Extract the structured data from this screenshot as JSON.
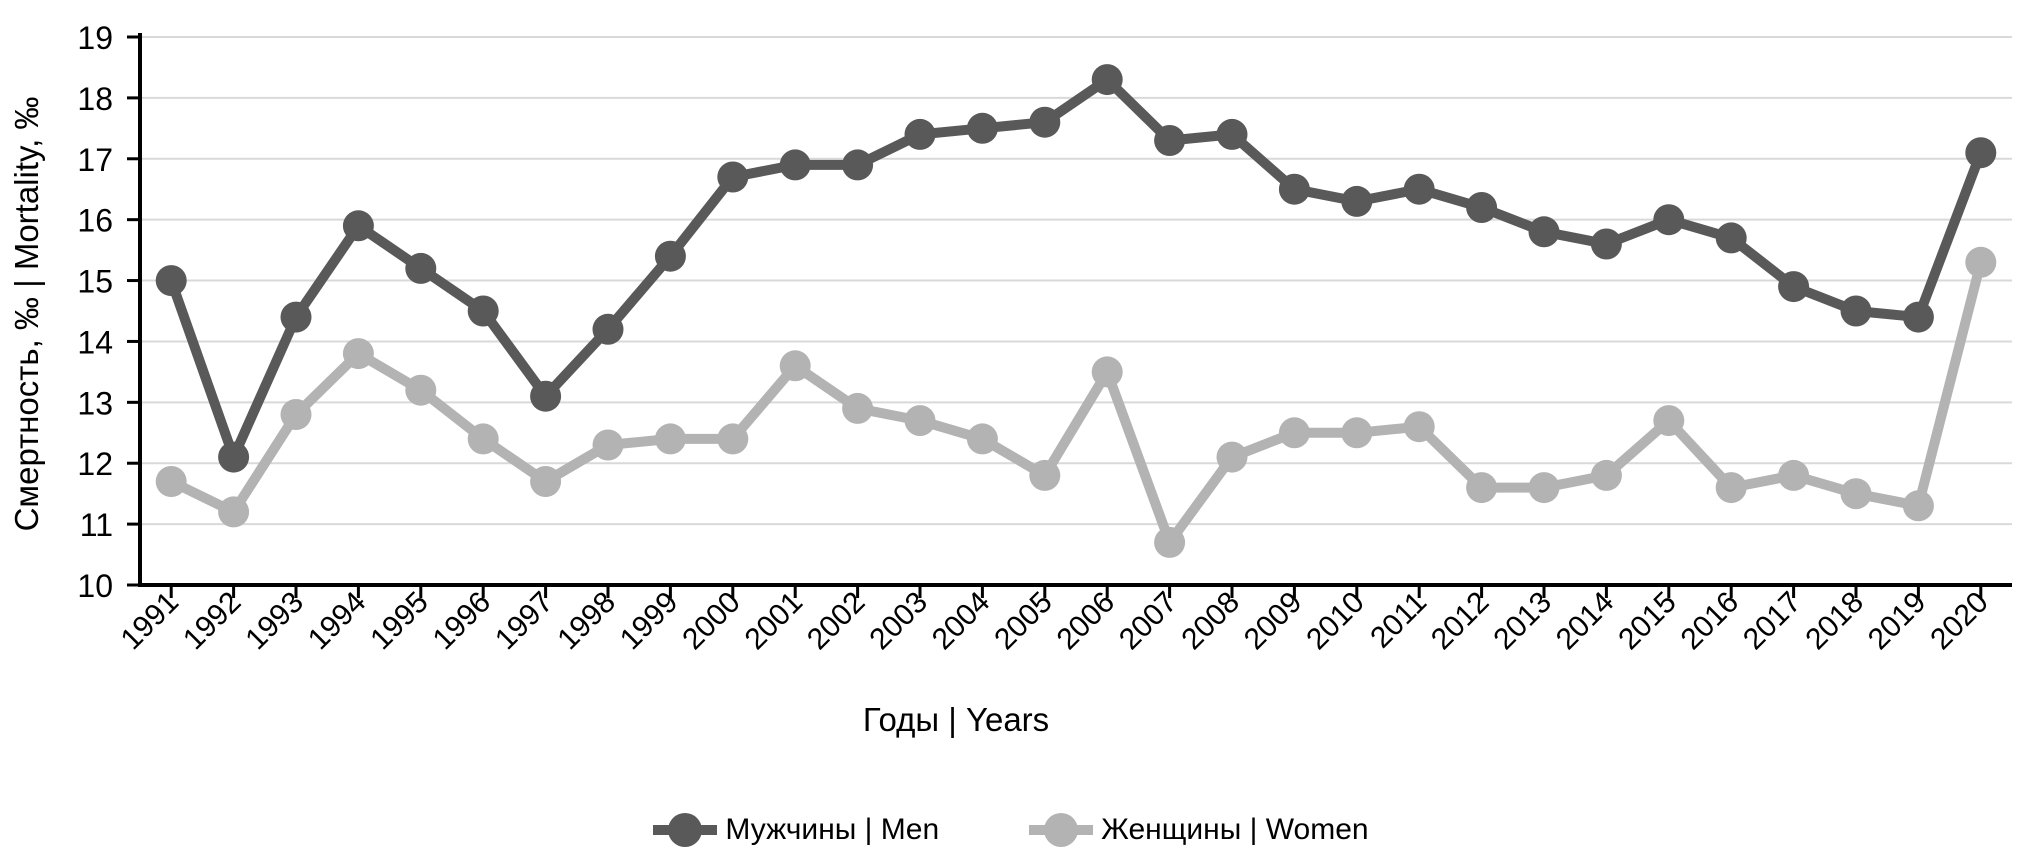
{
  "chart_data": {
    "type": "line",
    "title": "",
    "xlabel": "Годы | Years",
    "ylabel": "Смертность, ‰ | Mortality, ‰",
    "x": [
      1991,
      1992,
      1993,
      1994,
      1995,
      1996,
      1997,
      1998,
      1999,
      2000,
      2001,
      2002,
      2003,
      2004,
      2005,
      2006,
      2007,
      2008,
      2009,
      2010,
      2011,
      2012,
      2013,
      2014,
      2015,
      2016,
      2017,
      2018,
      2019,
      2020
    ],
    "series": [
      {
        "name": "Мужчины | Men",
        "color": "#595959",
        "values": [
          15.0,
          12.1,
          14.4,
          15.9,
          15.2,
          14.5,
          13.1,
          14.2,
          15.4,
          16.7,
          16.9,
          16.9,
          17.4,
          17.5,
          17.6,
          18.3,
          17.3,
          17.4,
          16.5,
          16.3,
          16.5,
          16.2,
          15.8,
          15.6,
          16.0,
          15.7,
          14.9,
          14.5,
          14.4,
          17.1
        ]
      },
      {
        "name": "Женщины | Women",
        "color": "#b3b3b3",
        "values": [
          11.7,
          11.2,
          12.8,
          13.8,
          13.2,
          12.4,
          11.7,
          12.3,
          12.4,
          12.4,
          13.6,
          12.9,
          12.7,
          12.4,
          11.8,
          13.5,
          10.7,
          12.1,
          12.5,
          12.5,
          12.6,
          11.6,
          11.6,
          11.8,
          12.7,
          11.6,
          11.8,
          11.5,
          11.3,
          15.3
        ]
      }
    ],
    "ylim": [
      10,
      19
    ],
    "ytick_step": 1,
    "grid": "horizontal",
    "grid_color": "#d9d9d9",
    "axis_color": "#000000",
    "legend_position": "bottom"
  }
}
